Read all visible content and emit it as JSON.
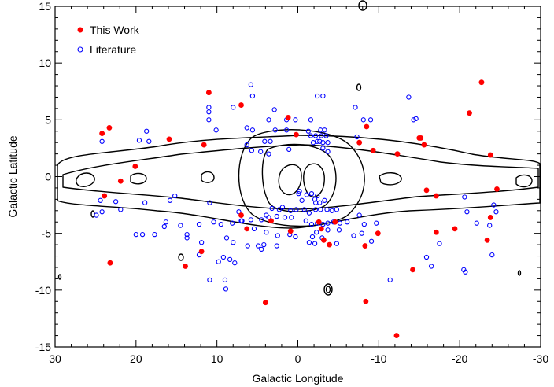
{
  "chart_data": {
    "type": "scatter",
    "title": "",
    "xlabel": "Galactic Longitude",
    "ylabel": "Galactic Latitude",
    "xlim": [
      30,
      -30
    ],
    "ylim": [
      -15,
      15
    ],
    "x_ticks": [
      30,
      20,
      10,
      0,
      -10,
      -20,
      -30
    ],
    "y_ticks": [
      15,
      10,
      5,
      0,
      -5,
      -10,
      -15
    ],
    "x_minor_step": 2,
    "y_minor_step": 1,
    "grid": false,
    "legend_position": "top-left",
    "colors": {
      "this_work": "#ff0000",
      "literature": "#0000ff",
      "contours": "#000000"
    },
    "series": [
      {
        "name": "This Work",
        "marker": "filled-circle",
        "points": [
          [
            24.2,
            3.8
          ],
          [
            23.3,
            4.3
          ],
          [
            15.9,
            3.3
          ],
          [
            11.0,
            7.4
          ],
          [
            11.6,
            2.8
          ],
          [
            7.0,
            6.3
          ],
          [
            1.2,
            5.2
          ],
          [
            0.2,
            3.7
          ],
          [
            -8.5,
            4.4
          ],
          [
            -7.6,
            3.0
          ],
          [
            -22.7,
            8.3
          ],
          [
            -21.2,
            5.6
          ],
          [
            -15.2,
            3.4
          ],
          [
            -15.0,
            3.4
          ],
          [
            -15.6,
            2.8
          ],
          [
            -12.3,
            2.0
          ],
          [
            -23.8,
            1.9
          ],
          [
            -9.3,
            2.3
          ],
          [
            20.1,
            0.9
          ],
          [
            21.9,
            -0.4
          ],
          [
            23.9,
            -1.7
          ],
          [
            -15.9,
            -1.2
          ],
          [
            -17.1,
            -1.7
          ],
          [
            -24.6,
            -1.1
          ],
          [
            -23.8,
            -3.6
          ],
          [
            7.0,
            -3.4
          ],
          [
            3.3,
            -3.9
          ],
          [
            6.3,
            -4.6
          ],
          [
            0.9,
            -4.8
          ],
          [
            -2.6,
            -4.0
          ],
          [
            -2.9,
            -4.6
          ],
          [
            -4.6,
            -4.0
          ],
          [
            -3.2,
            -5.6
          ],
          [
            -3.9,
            -6.0
          ],
          [
            -8.3,
            -6.1
          ],
          [
            -9.9,
            -5.0
          ],
          [
            -17.1,
            -4.9
          ],
          [
            -19.4,
            -4.6
          ],
          [
            -23.4,
            -5.6
          ],
          [
            11.9,
            -6.6
          ],
          [
            13.9,
            -7.9
          ],
          [
            23.2,
            -7.6
          ],
          [
            -14.2,
            -8.2
          ],
          [
            4.0,
            -11.1
          ],
          [
            -8.4,
            -11.0
          ],
          [
            -12.2,
            -14.0
          ]
        ]
      },
      {
        "name": "Literature",
        "marker": "open-circle",
        "points": [
          [
            24.2,
            3.1
          ],
          [
            18.7,
            4.0
          ],
          [
            19.6,
            3.2
          ],
          [
            18.4,
            3.1
          ],
          [
            11.0,
            6.1
          ],
          [
            11.0,
            5.7
          ],
          [
            11.0,
            5.0
          ],
          [
            10.1,
            4.1
          ],
          [
            8.0,
            6.1
          ],
          [
            5.8,
            8.1
          ],
          [
            5.6,
            7.1
          ],
          [
            2.9,
            5.9
          ],
          [
            3.6,
            5.0
          ],
          [
            1.4,
            5.0
          ],
          [
            0.3,
            5.0
          ],
          [
            -1.6,
            5.0
          ],
          [
            -2.4,
            7.1
          ],
          [
            -3.1,
            7.1
          ],
          [
            -8.1,
            5.0
          ],
          [
            -9.0,
            5.0
          ],
          [
            -14.3,
            5.0
          ],
          [
            -14.6,
            5.1
          ],
          [
            -13.7,
            7.0
          ],
          [
            -7.1,
            6.1
          ],
          [
            6.3,
            4.3
          ],
          [
            5.6,
            4.1
          ],
          [
            2.8,
            4.1
          ],
          [
            1.4,
            4.1
          ],
          [
            -1.3,
            4.0
          ],
          [
            -2.8,
            4.1
          ],
          [
            -3.3,
            4.1
          ],
          [
            -7.3,
            3.5
          ],
          [
            -1.6,
            3.6
          ],
          [
            -2.2,
            3.6
          ],
          [
            -2.9,
            3.6
          ],
          [
            -3.5,
            3.6
          ],
          [
            4.1,
            3.1
          ],
          [
            3.4,
            3.1
          ],
          [
            -1.9,
            3.0
          ],
          [
            -2.4,
            3.1
          ],
          [
            -2.7,
            3.1
          ],
          [
            -3.1,
            3.0
          ],
          [
            -3.7,
            3.0
          ],
          [
            6.3,
            2.8
          ],
          [
            5.7,
            2.3
          ],
          [
            4.6,
            2.2
          ],
          [
            1.1,
            2.4
          ],
          [
            -3.1,
            2.5
          ],
          [
            -3.7,
            2.2
          ],
          [
            3.6,
            2.0
          ],
          [
            -0.2,
            -1.3
          ],
          [
            -0.1,
            -1.5
          ],
          [
            -1.1,
            -1.6
          ],
          [
            -1.7,
            -1.5
          ],
          [
            -2.1,
            -2.0
          ],
          [
            -0.5,
            -2.1
          ],
          [
            -2.2,
            -2.3
          ],
          [
            -2.7,
            -2.3
          ],
          [
            -3.3,
            -2.1
          ],
          [
            -2.4,
            -1.7
          ],
          [
            24.4,
            -2.1
          ],
          [
            22.5,
            -2.2
          ],
          [
            18.9,
            -2.3
          ],
          [
            15.8,
            -2.1
          ],
          [
            15.2,
            -1.7
          ],
          [
            10.9,
            -2.3
          ],
          [
            -24.2,
            -2.5
          ],
          [
            -20.6,
            -1.8
          ],
          [
            3.2,
            -2.8
          ],
          [
            2.3,
            -2.9
          ],
          [
            1.9,
            -2.7
          ],
          [
            0.9,
            -3.0
          ],
          [
            0.2,
            -2.9
          ],
          [
            -0.8,
            -2.9
          ],
          [
            -1.4,
            -3.2
          ],
          [
            -2.2,
            -2.9
          ],
          [
            -2.8,
            -2.9
          ],
          [
            -3.6,
            -2.9
          ],
          [
            -4.2,
            -3.0
          ],
          [
            -4.8,
            -2.9
          ],
          [
            21.9,
            -2.9
          ],
          [
            24.9,
            -3.4
          ],
          [
            24.2,
            -3.1
          ],
          [
            7.3,
            -3.1
          ],
          [
            3.6,
            -3.6
          ],
          [
            -7.6,
            -3.4
          ],
          [
            -20.9,
            -3.1
          ],
          [
            -24.5,
            -3.1
          ],
          [
            -22.1,
            -4.1
          ],
          [
            -23.7,
            -4.3
          ],
          [
            6.9,
            -3.9
          ],
          [
            5.8,
            -3.8
          ],
          [
            4.5,
            -3.8
          ],
          [
            3.9,
            -3.4
          ],
          [
            2.6,
            -3.5
          ],
          [
            1.6,
            -3.6
          ],
          [
            0.8,
            -3.6
          ],
          [
            -1.0,
            -3.9
          ],
          [
            -1.7,
            -4.2
          ],
          [
            -2.4,
            -4.1
          ],
          [
            -3.1,
            -4.2
          ],
          [
            -3.7,
            -4.1
          ],
          [
            -4.4,
            -4.0
          ],
          [
            -5.2,
            -4.1
          ],
          [
            -6.1,
            -4.0
          ],
          [
            -8.2,
            -4.2
          ],
          [
            -9.7,
            -4.1
          ],
          [
            16.3,
            -4.0
          ],
          [
            16.5,
            -4.4
          ],
          [
            14.5,
            -4.3
          ],
          [
            12.2,
            -4.2
          ],
          [
            10.4,
            -4.0
          ],
          [
            8.1,
            -4.1
          ],
          [
            7.0,
            -3.9
          ],
          [
            9.5,
            -4.2
          ],
          [
            5.4,
            -4.6
          ],
          [
            3.9,
            -4.9
          ],
          [
            2.5,
            -5.2
          ],
          [
            1.0,
            -5.1
          ],
          [
            0.3,
            -5.3
          ],
          [
            -1.8,
            -5.3
          ],
          [
            -2.3,
            -4.9
          ],
          [
            -3.7,
            -4.7
          ],
          [
            -5.1,
            -4.7
          ],
          [
            -6.9,
            -5.2
          ],
          [
            -7.9,
            -5.0
          ],
          [
            20.0,
            -5.1
          ],
          [
            19.2,
            -5.1
          ],
          [
            17.7,
            -5.1
          ],
          [
            13.7,
            -5.1
          ],
          [
            13.7,
            -5.4
          ],
          [
            11.9,
            -5.8
          ],
          [
            8.8,
            -5.4
          ],
          [
            8.0,
            -5.8
          ],
          [
            6.2,
            -6.1
          ],
          [
            4.9,
            -6.1
          ],
          [
            4.2,
            -6.0
          ],
          [
            2.6,
            -6.1
          ],
          [
            -1.4,
            -5.8
          ],
          [
            -2.1,
            -5.9
          ],
          [
            -3.0,
            -5.4
          ],
          [
            -4.8,
            -5.9
          ],
          [
            -9.1,
            -5.7
          ],
          [
            -17.5,
            -5.9
          ],
          [
            -24.0,
            -6.9
          ],
          [
            12.2,
            -6.9
          ],
          [
            9.2,
            -7.1
          ],
          [
            8.4,
            -7.3
          ],
          [
            7.8,
            -7.6
          ],
          [
            9.8,
            -7.5
          ],
          [
            4.5,
            -6.4
          ],
          [
            -15.9,
            -7.1
          ],
          [
            -16.5,
            -7.9
          ],
          [
            -20.5,
            -8.2
          ],
          [
            -20.7,
            -8.4
          ],
          [
            10.9,
            -9.1
          ],
          [
            9.0,
            -9.1
          ],
          [
            8.9,
            -9.9
          ],
          [
            -11.4,
            -9.1
          ]
        ]
      }
    ]
  }
}
